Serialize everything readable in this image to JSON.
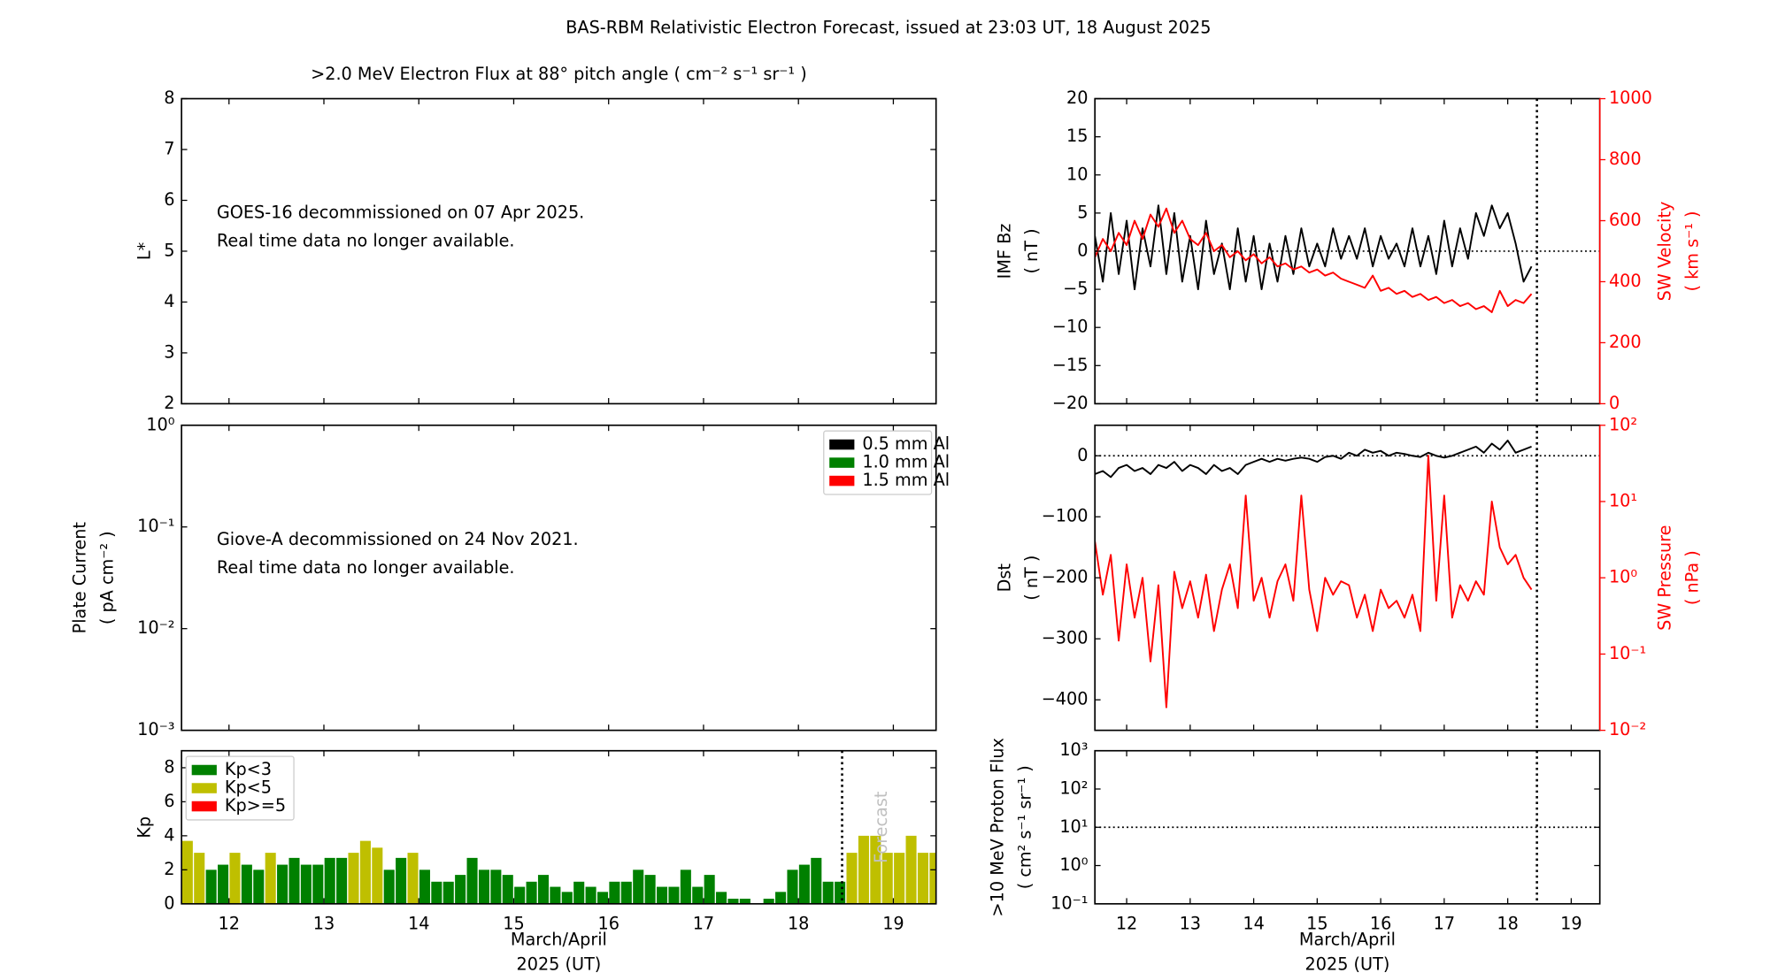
{
  "title": "BAS-RBM Relativistic Electron Forecast, issued at 23:03 UT, 18 August 2025",
  "chart_data": [
    {
      "type": "empty",
      "title": ">2.0 MeV Electron Flux at 88° pitch angle ( cm⁻² s⁻¹ sr⁻¹ )",
      "ylabel": [
        "L*"
      ],
      "xlim": [
        11.5,
        19.45
      ],
      "xticks": [
        12,
        13,
        14,
        15,
        16,
        17,
        18,
        19
      ],
      "xticklabels": false,
      "ylim": [
        2,
        8
      ],
      "yticks": [
        2,
        3,
        4,
        5,
        6,
        7,
        8
      ],
      "annotation": [
        "GOES-16 decommissioned on 07 Apr 2025.",
        "Real time data no longer available."
      ]
    },
    {
      "type": "empty",
      "ylabel": [
        "Plate Current",
        "( pA cm⁻² )"
      ],
      "xlim": [
        11.5,
        19.45
      ],
      "xticks": [
        12,
        13,
        14,
        15,
        16,
        17,
        18,
        19
      ],
      "xticklabels": false,
      "ylim": [
        0.001,
        1
      ],
      "ylog": true,
      "yticks": [
        {
          "value": 0.001,
          "label": "10⁻³"
        },
        {
          "value": 0.01,
          "label": "10⁻²"
        },
        {
          "value": 0.1,
          "label": "10⁻¹"
        },
        {
          "value": 1,
          "label": "10⁰"
        }
      ],
      "legend": "upper right",
      "series": [
        {
          "name": "0.5 mm Al",
          "color": "#000000",
          "values": []
        },
        {
          "name": "1.0 mm Al",
          "color": "#008000",
          "values": []
        },
        {
          "name": "1.5 mm Al",
          "color": "#ff0000",
          "values": []
        }
      ],
      "annotation": [
        "Giove-A decommissioned on 24 Nov 2021.",
        "Real time data no longer available."
      ]
    },
    {
      "type": "bar",
      "ylabel": [
        "Kp"
      ],
      "xlabel": [
        "March/April",
        "2025 (UT)"
      ],
      "xlim": [
        11.5,
        19.45
      ],
      "xticks": [
        12,
        13,
        14,
        15,
        16,
        17,
        18,
        19
      ],
      "ylim": [
        0,
        9
      ],
      "yticks": [
        0,
        2,
        4,
        6,
        8
      ],
      "legend": "upper left",
      "now_x": 18.46,
      "now_label": "Forecast",
      "x": [
        11.5,
        11.625,
        11.75,
        11.875,
        12,
        12.125,
        12.25,
        12.375,
        12.5,
        12.625,
        12.75,
        12.875,
        13,
        13.125,
        13.25,
        13.375,
        13.5,
        13.625,
        13.75,
        13.875,
        14,
        14.125,
        14.25,
        14.375,
        14.5,
        14.625,
        14.75,
        14.875,
        15,
        15.125,
        15.25,
        15.375,
        15.5,
        15.625,
        15.75,
        15.875,
        16,
        16.125,
        16.25,
        16.375,
        16.5,
        16.625,
        16.75,
        16.875,
        17,
        17.125,
        17.25,
        17.375,
        17.5,
        17.625,
        17.75,
        17.875,
        18,
        18.125,
        18.25,
        18.375,
        18.5,
        18.625,
        18.75,
        18.875,
        19,
        19.125,
        19.25,
        19.375
      ],
      "series": [
        {
          "name": "Kp<3",
          "color": "#008000",
          "values": [
            null,
            null,
            2,
            2.3,
            null,
            2.3,
            2,
            null,
            2.3,
            2.7,
            2.3,
            2.3,
            2.7,
            2.7,
            null,
            null,
            null,
            2,
            2.7,
            null,
            2,
            1.3,
            1.3,
            1.7,
            2.7,
            2,
            2,
            1.7,
            1,
            1.3,
            1.7,
            1,
            0.7,
            1.3,
            1,
            0.7,
            1.3,
            1.3,
            2,
            1.7,
            1,
            1,
            2,
            1,
            1.7,
            0.7,
            0.3,
            0.3,
            0,
            0.3,
            0.7,
            2,
            2.3,
            2.7,
            1.3,
            1.3,
            null,
            null,
            null,
            null,
            null,
            null,
            null,
            null
          ]
        },
        {
          "name": "Kp<5",
          "color": "#bfbf00",
          "values": [
            3.7,
            3,
            null,
            null,
            3,
            null,
            null,
            3,
            null,
            null,
            null,
            null,
            null,
            null,
            3,
            3.7,
            3.3,
            null,
            null,
            3,
            null,
            null,
            null,
            null,
            null,
            null,
            null,
            null,
            null,
            null,
            null,
            null,
            null,
            null,
            null,
            null,
            null,
            null,
            null,
            null,
            null,
            null,
            null,
            null,
            null,
            null,
            null,
            null,
            null,
            null,
            null,
            null,
            null,
            null,
            null,
            null,
            3,
            4,
            4,
            3,
            3,
            4,
            3,
            3
          ]
        },
        {
          "name": "Kp>=5",
          "color": "#ff0000",
          "values": [
            null,
            null,
            null,
            null,
            null,
            null,
            null,
            null,
            null,
            null,
            null,
            null,
            null,
            null,
            null,
            null,
            null,
            null,
            null,
            null,
            null,
            null,
            null,
            null,
            null,
            null,
            null,
            null,
            null,
            null,
            null,
            null,
            null,
            null,
            null,
            null,
            null,
            null,
            null,
            null,
            null,
            null,
            null,
            null,
            null,
            null,
            null,
            null,
            null,
            null,
            null,
            null,
            null,
            null,
            null,
            null,
            null,
            null,
            null,
            null,
            null,
            null,
            null,
            null
          ]
        }
      ]
    },
    {
      "type": "line",
      "ylabel": [
        "IMF Bz",
        "( nT )"
      ],
      "y2label": [
        "SW Velocity",
        "( km s⁻¹ )"
      ],
      "y2color": "#ff0000",
      "xlim": [
        11.5,
        19.45
      ],
      "xticks": [
        12,
        13,
        14,
        15,
        16,
        17,
        18,
        19
      ],
      "xticklabels": false,
      "ylim": [
        -20,
        20
      ],
      "yticks": [
        {
          "value": -20,
          "label": "−20"
        },
        {
          "value": -15,
          "label": "−15"
        },
        {
          "value": -10,
          "label": "−10"
        },
        {
          "value": -5,
          "label": "−5"
        },
        0,
        5,
        10,
        15,
        20
      ],
      "y2lim": [
        0,
        1000
      ],
      "y2ticks": [
        0,
        200,
        400,
        600,
        800,
        1000
      ],
      "now_x": 18.46,
      "reference_y": 0,
      "x": [
        11.5,
        11.625,
        11.75,
        11.875,
        12,
        12.125,
        12.25,
        12.375,
        12.5,
        12.625,
        12.75,
        12.875,
        13,
        13.125,
        13.25,
        13.375,
        13.5,
        13.625,
        13.75,
        13.875,
        14,
        14.125,
        14.25,
        14.375,
        14.5,
        14.625,
        14.75,
        14.875,
        15,
        15.125,
        15.25,
        15.375,
        15.5,
        15.625,
        15.75,
        15.875,
        16,
        16.125,
        16.25,
        16.375,
        16.5,
        16.625,
        16.75,
        16.875,
        17,
        17.125,
        17.25,
        17.375,
        17.5,
        17.625,
        17.75,
        17.875,
        18,
        18.125,
        18.25,
        18.375
      ],
      "series": [
        {
          "name": "IMF Bz",
          "color": "#000000",
          "values": [
            2,
            -4,
            5,
            -3,
            4,
            -5,
            3,
            -2,
            6,
            -3,
            5,
            -4,
            2,
            -5,
            4,
            -3,
            1,
            -5,
            3,
            -4,
            2,
            -5,
            1,
            -4,
            2,
            -3,
            3,
            -2,
            1,
            -2,
            3,
            -1,
            2,
            -1,
            3,
            -2,
            2,
            -1,
            1,
            -2,
            3,
            -2,
            2,
            -3,
            4,
            -2,
            3,
            -1,
            5,
            2,
            6,
            3,
            5,
            1,
            -4,
            -2
          ]
        },
        {
          "name": "SW Velocity",
          "color": "#ff0000",
          "axis": "y2",
          "values": [
            480,
            540,
            500,
            560,
            520,
            600,
            540,
            620,
            580,
            640,
            560,
            600,
            540,
            520,
            560,
            500,
            520,
            480,
            500,
            470,
            490,
            460,
            480,
            450,
            460,
            440,
            450,
            430,
            440,
            420,
            430,
            410,
            400,
            390,
            380,
            420,
            370,
            380,
            360,
            370,
            350,
            360,
            340,
            350,
            330,
            340,
            320,
            330,
            310,
            320,
            300,
            370,
            320,
            340,
            330,
            360
          ]
        }
      ]
    },
    {
      "type": "line",
      "ylabel": [
        "Dst",
        "( nT )"
      ],
      "y2label": [
        "SW Pressure",
        "( nPa )"
      ],
      "y2color": "#ff0000",
      "xlim": [
        11.5,
        19.45
      ],
      "xticks": [
        12,
        13,
        14,
        15,
        16,
        17,
        18,
        19
      ],
      "xticklabels": false,
      "ylim": [
        -450,
        50
      ],
      "yticks": [
        {
          "value": -400,
          "label": "−400"
        },
        {
          "value": -300,
          "label": "−300"
        },
        {
          "value": -200,
          "label": "−200"
        },
        {
          "value": -100,
          "label": "−100"
        },
        0
      ],
      "y2lim": [
        0.01,
        100
      ],
      "y2log": true,
      "y2ticks": [
        {
          "value": 0.01,
          "label": "10⁻²"
        },
        {
          "value": 0.1,
          "label": "10⁻¹"
        },
        {
          "value": 1,
          "label": "10⁰"
        },
        {
          "value": 10,
          "label": "10¹"
        },
        {
          "value": 100,
          "label": "10²"
        }
      ],
      "now_x": 18.46,
      "reference_y": 0,
      "x": [
        11.5,
        11.625,
        11.75,
        11.875,
        12,
        12.125,
        12.25,
        12.375,
        12.5,
        12.625,
        12.75,
        12.875,
        13,
        13.125,
        13.25,
        13.375,
        13.5,
        13.625,
        13.75,
        13.875,
        14,
        14.125,
        14.25,
        14.375,
        14.5,
        14.625,
        14.75,
        14.875,
        15,
        15.125,
        15.25,
        15.375,
        15.5,
        15.625,
        15.75,
        15.875,
        16,
        16.125,
        16.25,
        16.375,
        16.5,
        16.625,
        16.75,
        16.875,
        17,
        17.125,
        17.25,
        17.375,
        17.5,
        17.625,
        17.75,
        17.875,
        18,
        18.125,
        18.25,
        18.375
      ],
      "series": [
        {
          "name": "SW Pressure",
          "color": "#ff0000",
          "axis": "y2",
          "values": [
            3,
            0.6,
            2,
            0.15,
            1.5,
            0.3,
            1,
            0.08,
            0.8,
            0.02,
            1.2,
            0.4,
            0.9,
            0.3,
            1.1,
            0.2,
            0.7,
            1.5,
            0.4,
            12,
            0.5,
            1,
            0.3,
            0.9,
            1.5,
            0.5,
            12,
            0.7,
            0.2,
            1,
            0.6,
            0.9,
            0.8,
            0.3,
            0.6,
            0.2,
            0.7,
            0.4,
            0.5,
            0.3,
            0.6,
            0.2,
            40,
            0.5,
            12,
            0.3,
            0.8,
            0.5,
            0.9,
            0.6,
            10,
            2.5,
            1.5,
            2,
            1,
            0.7
          ]
        },
        {
          "name": "Dst",
          "color": "#000000",
          "values": [
            -30,
            -25,
            -35,
            -20,
            -15,
            -25,
            -20,
            -30,
            -15,
            -20,
            -10,
            -25,
            -15,
            -20,
            -30,
            -15,
            -25,
            -20,
            -30,
            -15,
            -10,
            -5,
            -10,
            -5,
            -8,
            -5,
            -3,
            -5,
            -10,
            -2,
            0,
            -5,
            5,
            0,
            10,
            5,
            8,
            0,
            5,
            3,
            0,
            -2,
            5,
            0,
            -3,
            0,
            5,
            10,
            15,
            5,
            20,
            10,
            25,
            5,
            10,
            15
          ]
        }
      ]
    },
    {
      "type": "empty",
      "ylabel": [
        ">10 MeV Proton Flux",
        "( cm² s⁻¹ sr⁻¹ )"
      ],
      "xlabel": [
        "March/April",
        "2025 (UT)"
      ],
      "xlim": [
        11.5,
        19.45
      ],
      "xticks": [
        12,
        13,
        14,
        15,
        16,
        17,
        18,
        19
      ],
      "ylim": [
        0.1,
        1000
      ],
      "ylog": true,
      "yticks": [
        {
          "value": 0.1,
          "label": "10⁻¹"
        },
        {
          "value": 1,
          "label": "10⁰"
        },
        {
          "value": 10,
          "label": "10¹"
        },
        {
          "value": 100,
          "label": "10²"
        },
        {
          "value": 1000,
          "label": "10³"
        }
      ],
      "now_x": 18.46,
      "reference_y": 10
    }
  ]
}
